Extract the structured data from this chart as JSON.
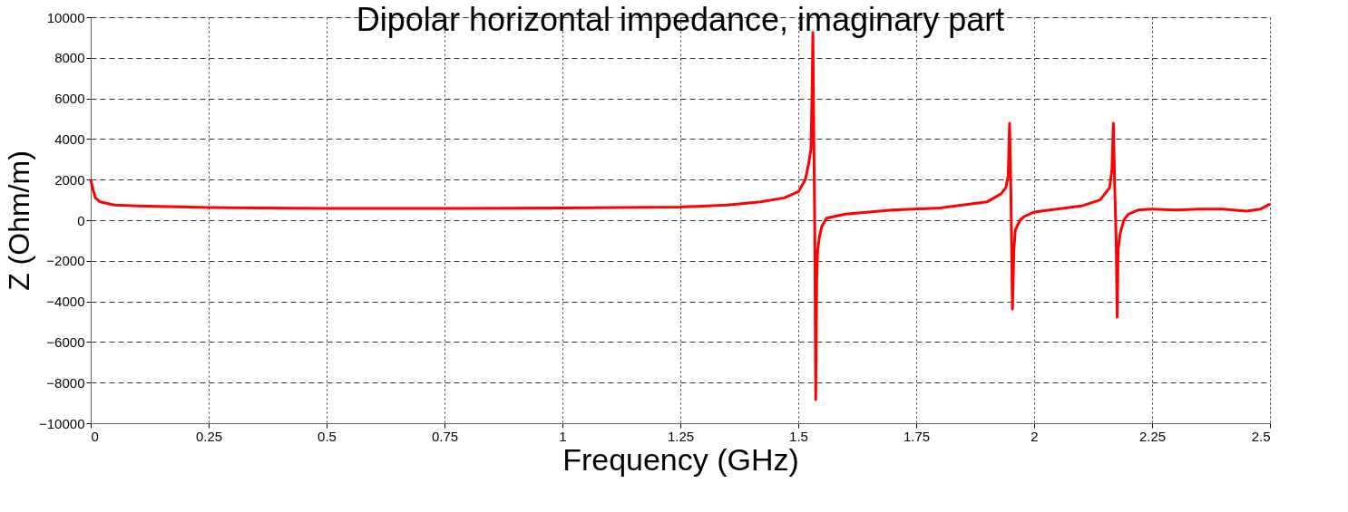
{
  "chart_data": {
    "type": "line",
    "title": "Dipolar horizontal impedance, imaginary part",
    "xlabel": "Frequency (GHz)",
    "ylabel": "Z (Ohm/m)",
    "xlim": [
      0,
      2.5
    ],
    "xticks": [
      0,
      0.25,
      0.5,
      0.75,
      1,
      1.25,
      1.5,
      1.75,
      2,
      2.25,
      2.5
    ],
    "ylim": [
      -10000,
      10000
    ],
    "yticks": [
      -10000,
      -8000,
      -6000,
      -4000,
      -2000,
      0,
      2000,
      4000,
      6000,
      8000,
      10000
    ],
    "grid": true,
    "marker": "none",
    "line_style": "solid",
    "series": [
      {
        "color": "#ff0000",
        "x": [
          0,
          0.005,
          0.01,
          0.02,
          0.05,
          0.1,
          0.25,
          0.5,
          0.75,
          1.0,
          1.25,
          1.35,
          1.42,
          1.47,
          1.5,
          1.515,
          1.522,
          1.527,
          1.529,
          1.531,
          1.533,
          1.535,
          1.537,
          1.539,
          1.541,
          1.545,
          1.55,
          1.56,
          1.6,
          1.7,
          1.8,
          1.9,
          1.93,
          1.94,
          1.945,
          1.948,
          1.951,
          1.954,
          1.957,
          1.96,
          1.97,
          1.98,
          2.0,
          2.1,
          2.14,
          2.16,
          2.165,
          2.168,
          2.171,
          2.174,
          2.176,
          2.178,
          2.182,
          2.19,
          2.2,
          2.22,
          2.25,
          2.3,
          2.35,
          2.4,
          2.45,
          2.48,
          2.5
        ],
        "values": [
          2000,
          1500,
          1100,
          900,
          750,
          700,
          620,
          580,
          580,
          600,
          650,
          750,
          900,
          1100,
          1400,
          2000,
          2800,
          3500,
          6000,
          9240,
          4000,
          -500,
          -8840,
          -3000,
          -1500,
          -800,
          -300,
          100,
          300,
          500,
          600,
          900,
          1300,
          1600,
          2200,
          4780,
          1000,
          -4380,
          -1500,
          -500,
          0,
          200,
          400,
          700,
          1000,
          1600,
          2500,
          4780,
          1500,
          -1000,
          -4780,
          -1500,
          -700,
          0,
          300,
          500,
          550,
          500,
          550,
          550,
          450,
          550,
          800
        ]
      }
    ]
  }
}
